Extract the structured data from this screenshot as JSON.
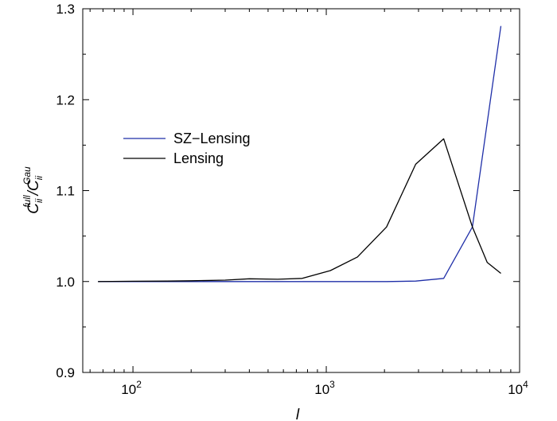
{
  "chart_data": {
    "type": "line",
    "title": "",
    "xscale": "log",
    "xlim": [
      55,
      10000
    ],
    "ylim": [
      0.9,
      1.3
    ],
    "xlabel": "l",
    "ylabel": "C_ii^full / C_ii^Gau",
    "ylabel_parts": {
      "base1": "C",
      "sub1": "ii",
      "sup1": "full",
      "slash": "/",
      "base2": "C",
      "sub2": "ii",
      "sup2": "Gau"
    },
    "x_ticks": [
      {
        "value": 100,
        "base": "10",
        "exp": "2"
      },
      {
        "value": 1000,
        "base": "10",
        "exp": "3"
      },
      {
        "value": 10000,
        "base": "10",
        "exp": "4"
      }
    ],
    "y_ticks": [
      {
        "value": 0.9,
        "label": "0.9"
      },
      {
        "value": 1.0,
        "label": "1.0"
      },
      {
        "value": 1.1,
        "label": "1.1"
      },
      {
        "value": 1.2,
        "label": "1.2"
      },
      {
        "value": 1.3,
        "label": "1.3"
      }
    ],
    "legend_position": "left-middle",
    "series": [
      {
        "name": "SZ−Lensing",
        "color": "#1f2fa8",
        "x": [
          66,
          100,
          150,
          200,
          300,
          400,
          560,
          750,
          1050,
          1450,
          2050,
          2900,
          4050,
          5700,
          8000
        ],
        "y": [
          1.0,
          1.0,
          1.0,
          1.0,
          1.0,
          1.0,
          1.0,
          1.0,
          1.0,
          1.0,
          1.0,
          1.0005,
          1.0035,
          1.06,
          1.281
        ]
      },
      {
        "name": "Lensing",
        "color": "#000000",
        "x": [
          66,
          100,
          150,
          200,
          300,
          400,
          560,
          750,
          1050,
          1450,
          2050,
          2900,
          4050,
          5700,
          6800,
          8000
        ],
        "y": [
          1.0,
          1.0003,
          1.0005,
          1.0008,
          1.0015,
          1.003,
          1.0025,
          1.0035,
          1.012,
          1.027,
          1.06,
          1.129,
          1.157,
          1.06,
          1.021,
          1.009
        ]
      }
    ]
  }
}
